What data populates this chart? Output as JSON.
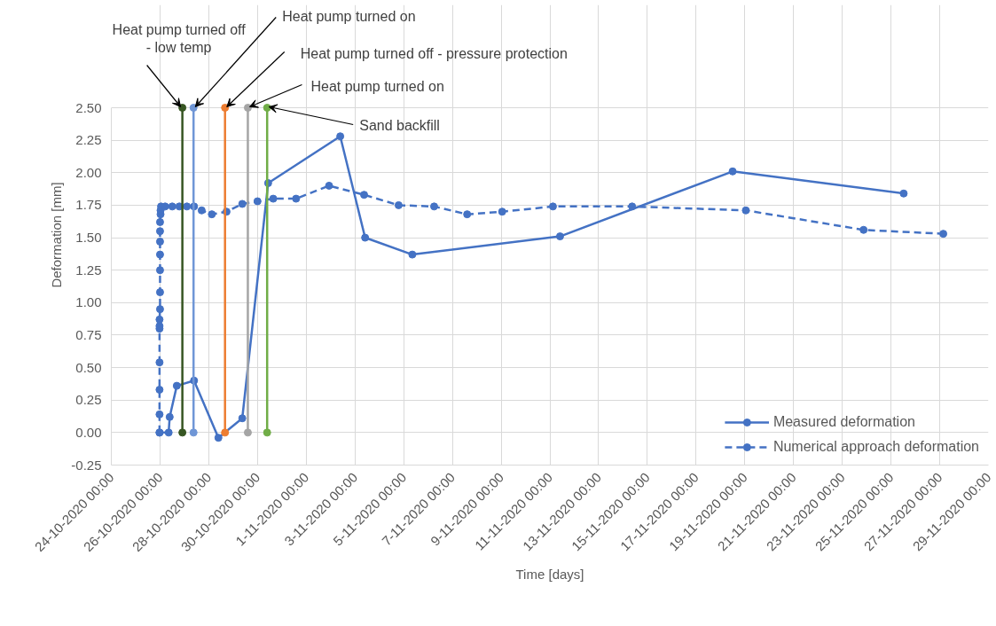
{
  "chart_data": {
    "type": "line",
    "xlabel": "Time [days]",
    "ylabel": "Deformation [mm]",
    "xlim": [
      "2020-10-24",
      "2020-11-29"
    ],
    "xticks": [
      {
        "value": "2020-10-24",
        "label": "24-10-2020 00:00"
      },
      {
        "value": "2020-10-26",
        "label": "26-10-2020 00:00"
      },
      {
        "value": "2020-10-28",
        "label": "28-10-2020 00:00"
      },
      {
        "value": "2020-10-30",
        "label": "30-10-2020 00:00"
      },
      {
        "value": "2020-11-01",
        "label": "1-11-2020 00:00"
      },
      {
        "value": "2020-11-03",
        "label": "3-11-2020 00:00"
      },
      {
        "value": "2020-11-05",
        "label": "5-11-2020 00:00"
      },
      {
        "value": "2020-11-07",
        "label": "7-11-2020 00:00"
      },
      {
        "value": "2020-11-09",
        "label": "9-11-2020 00:00"
      },
      {
        "value": "2020-11-11",
        "label": "11-11-2020 00:00"
      },
      {
        "value": "2020-11-13",
        "label": "13-11-2020 00:00"
      },
      {
        "value": "2020-11-15",
        "label": "15-11-2020 00:00"
      },
      {
        "value": "2020-11-17",
        "label": "17-11-2020 00:00"
      },
      {
        "value": "2020-11-19",
        "label": "19-11-2020 00:00"
      },
      {
        "value": "2020-11-21",
        "label": "21-11-2020 00:00"
      },
      {
        "value": "2020-11-23",
        "label": "23-11-2020 00:00"
      },
      {
        "value": "2020-11-25",
        "label": "25-11-2020 00:00"
      },
      {
        "value": "2020-11-27",
        "label": "27-11-2020 00:00"
      },
      {
        "value": "2020-11-29",
        "label": "29-11-2020 00:00"
      }
    ],
    "ylim": [
      -0.25,
      2.5
    ],
    "yticks": [
      {
        "value": -0.25,
        "label": "-0.25"
      },
      {
        "value": 0,
        "label": "0.00"
      },
      {
        "value": 0.25,
        "label": "0.25"
      },
      {
        "value": 0.5,
        "label": "0.50"
      },
      {
        "value": 0.75,
        "label": "0.75"
      },
      {
        "value": 1.0,
        "label": "1.00"
      },
      {
        "value": 1.25,
        "label": "1.25"
      },
      {
        "value": 1.5,
        "label": "1.50"
      },
      {
        "value": 1.75,
        "label": "1.75"
      },
      {
        "value": 2.0,
        "label": "2.00"
      },
      {
        "value": 2.25,
        "label": "2.25"
      },
      {
        "value": 2.5,
        "label": "2.50"
      }
    ],
    "grid": true,
    "legend": "bottom right",
    "marker": "circle",
    "series": [
      {
        "name": "Measured deformation",
        "color": "#4472c4",
        "line_style": "solid",
        "x": [
          "2020-10-25T23:30",
          "2020-10-26T08:30",
          "2020-10-26T09:30",
          "2020-10-26T16:30",
          "2020-10-27T09:30",
          "2020-10-28T09:30",
          "2020-10-29T09:00",
          "2020-10-30T10:30",
          "2020-11-02T09:30",
          "2020-11-03T10:00",
          "2020-11-05T08:30",
          "2020-11-11T10:00",
          "2020-11-18T12:00",
          "2020-11-25T12:30"
        ],
        "values": [
          0.0,
          0.0,
          0.12,
          0.36,
          0.4,
          -0.04,
          0.11,
          1.92,
          2.28,
          1.5,
          1.37,
          1.51,
          2.01,
          1.84
        ]
      },
      {
        "name": "Numerical approach deformation",
        "color": "#4472c4",
        "line_style": "dashed",
        "x": [
          "2020-10-25T23:30",
          "2020-10-25T23:30",
          "2020-10-25T23:30",
          "2020-10-25T23:30",
          "2020-10-25T23:30",
          "2020-10-25T23:30",
          "2020-10-25T23:30",
          "2020-10-26T00:00",
          "2020-10-26T00:00",
          "2020-10-26T00:00",
          "2020-10-26T00:00",
          "2020-10-26T00:00",
          "2020-10-26T00:00",
          "2020-10-26T00:00",
          "2020-10-26T00:30",
          "2020-10-26T00:30",
          "2020-10-26T01:00",
          "2020-10-26T05:00",
          "2020-10-26T12:00",
          "2020-10-26T19:00",
          "2020-10-27T02:30",
          "2020-10-27T09:30",
          "2020-10-27T17:00",
          "2020-10-28T03:00",
          "2020-10-28T17:30",
          "2020-10-29T09:00",
          "2020-10-30T00:00",
          "2020-10-30T15:30",
          "2020-10-31T14:00",
          "2020-11-01T22:30",
          "2020-11-03T09:00",
          "2020-11-04T19:00",
          "2020-11-06T06:00",
          "2020-11-07T14:30",
          "2020-11-09T01:00",
          "2020-11-11T03:00",
          "2020-11-14T09:00",
          "2020-11-19T01:00",
          "2020-11-23T21:00",
          "2020-11-27T03:30"
        ],
        "values": [
          0.0,
          0.14,
          0.33,
          0.54,
          0.8,
          0.82,
          0.87,
          0.95,
          1.08,
          1.25,
          1.37,
          1.47,
          1.55,
          1.62,
          1.68,
          1.71,
          1.74,
          1.74,
          1.74,
          1.74,
          1.74,
          1.74,
          1.71,
          1.68,
          1.7,
          1.76,
          1.78,
          1.8,
          1.8,
          1.9,
          1.83,
          1.75,
          1.74,
          1.68,
          1.7,
          1.74,
          1.74,
          1.71,
          1.56,
          1.53
        ]
      },
      {
        "color": "#375623",
        "line_style": "solid",
        "x": [
          "2020-10-26T22:00",
          "2020-10-26T22:00"
        ],
        "values": [
          0.0,
          2.5
        ]
      },
      {
        "color": "#6f96d6",
        "line_style": "solid",
        "x": [
          "2020-10-27T09:00",
          "2020-10-27T09:00"
        ],
        "values": [
          0.0,
          2.5
        ]
      },
      {
        "color": "#ed7d31",
        "line_style": "solid",
        "x": [
          "2020-10-28T16:00",
          "2020-10-28T16:00"
        ],
        "values": [
          0.0,
          2.5
        ]
      },
      {
        "color": "#a5a5a5",
        "line_style": "solid",
        "x": [
          "2020-10-29T14:30",
          "2020-10-29T14:30"
        ],
        "values": [
          0.0,
          2.5
        ]
      },
      {
        "color": "#70ad47",
        "line_style": "solid",
        "x": [
          "2020-10-30T09:30",
          "2020-10-30T09:30"
        ],
        "values": [
          0.0,
          2.5
        ]
      }
    ],
    "annotations": [
      {
        "text": "Heat pump turned off\n- low temp",
        "x": "2020-10-26T22:00",
        "y": 2.5
      },
      {
        "text": "Heat pump turned on",
        "x": "2020-10-27T09:00",
        "y": 2.5
      },
      {
        "text": "Heat pump turned off - pressure protection",
        "x": "2020-10-28T16:00",
        "y": 2.5
      },
      {
        "text": "Heat pump turned on",
        "x": "2020-10-29T14:30",
        "y": 2.5
      },
      {
        "text": "Sand backfill",
        "x": "2020-10-30T09:30",
        "y": 2.5
      }
    ]
  }
}
